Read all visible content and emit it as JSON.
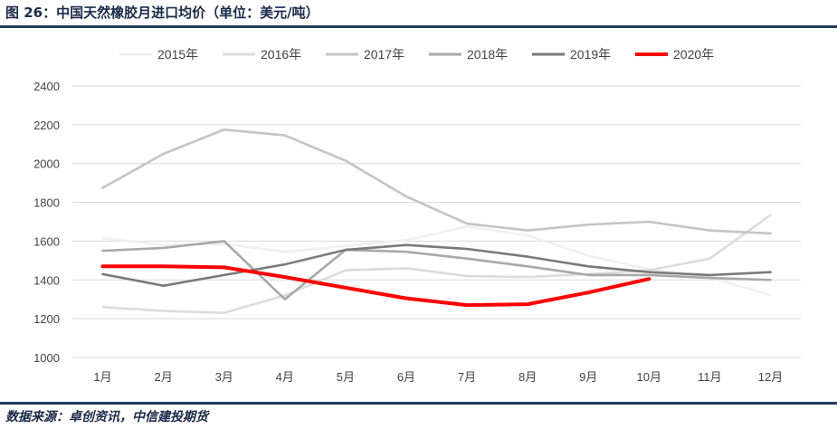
{
  "header": {
    "title": "图 26：中国天然橡胶月进口均价（单位：美元/吨）"
  },
  "footer": {
    "source": "数据来源：卓创资讯，中信建投期货"
  },
  "chart_data": {
    "type": "line",
    "categories": [
      "1月",
      "2月",
      "3月",
      "4月",
      "5月",
      "6月",
      "7月",
      "8月",
      "9月",
      "10月",
      "11月",
      "12月"
    ],
    "ylim": [
      1000,
      2400
    ],
    "yticks": [
      1000,
      1200,
      1400,
      1600,
      1800,
      2000,
      2200,
      2400
    ],
    "grid": true,
    "legend_position": "top",
    "series": [
      {
        "name": "2015年",
        "color": "#f0f0f0",
        "values": [
          1615,
          1580,
          1585,
          1545,
          1575,
          1605,
          1675,
          1630,
          1525,
          1455,
          1415,
          1320
        ]
      },
      {
        "name": "2016年",
        "color": "#dcdcdc",
        "values": [
          1260,
          1240,
          1230,
          1320,
          1450,
          1460,
          1420,
          1415,
          1430,
          1450,
          1510,
          1735
        ]
      },
      {
        "name": "2017年",
        "color": "#c4c4c4",
        "values": [
          1875,
          2050,
          2175,
          2145,
          2015,
          1830,
          1690,
          1655,
          1685,
          1700,
          1655,
          1640
        ]
      },
      {
        "name": "2018年",
        "color": "#a8a8a8",
        "values": [
          1550,
          1565,
          1600,
          1300,
          1555,
          1545,
          1510,
          1470,
          1425,
          1425,
          1410,
          1400
        ]
      },
      {
        "name": "2019年",
        "color": "#7a7a7a",
        "values": [
          1430,
          1370,
          1425,
          1480,
          1555,
          1580,
          1560,
          1520,
          1470,
          1440,
          1425,
          1440
        ]
      },
      {
        "name": "2020年",
        "color": "#ff0000",
        "values": [
          1470,
          1470,
          1465,
          1415,
          1360,
          1305,
          1270,
          1275,
          1335,
          1405,
          null,
          null
        ]
      }
    ]
  }
}
